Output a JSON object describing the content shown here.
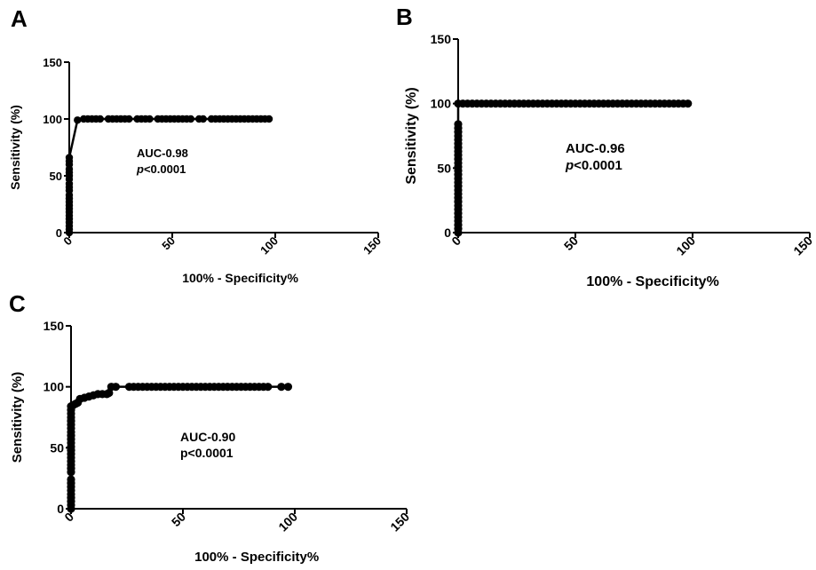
{
  "chart_data": [
    {
      "panel": "A",
      "type": "scatter",
      "xlabel": "100% - Specificity%",
      "ylabel": "Sensitivity (%)",
      "xlim": [
        0,
        150
      ],
      "ylim": [
        0,
        150
      ],
      "xticks": [
        "0",
        "50",
        "100",
        "150"
      ],
      "yticks": [
        "0",
        "50",
        "100",
        "150"
      ],
      "annotation": [
        "AUC-0.98",
        "p<0.0001"
      ],
      "annotation_italic_p": true,
      "x": [
        0,
        0,
        0,
        0,
        0,
        0,
        0,
        0,
        0,
        0,
        0,
        0,
        0,
        0,
        0,
        0,
        0,
        0,
        0,
        0,
        0,
        0,
        4,
        7,
        9,
        11,
        13,
        15,
        19,
        21,
        23,
        25,
        27,
        29,
        33,
        35,
        37,
        39,
        43,
        45,
        47,
        49,
        51,
        53,
        55,
        57,
        59,
        63,
        65,
        69,
        71,
        73,
        75,
        77,
        79,
        81,
        83,
        85,
        87,
        89,
        91,
        93,
        95,
        97
      ],
      "y": [
        0,
        3,
        6,
        9,
        12,
        15,
        18,
        21,
        24,
        27,
        30,
        33,
        37,
        40,
        43,
        47,
        50,
        53,
        56,
        60,
        63,
        66,
        99,
        100,
        100,
        100,
        100,
        100,
        100,
        100,
        100,
        100,
        100,
        100,
        100,
        100,
        100,
        100,
        100,
        100,
        100,
        100,
        100,
        100,
        100,
        100,
        100,
        100,
        100,
        100,
        100,
        100,
        100,
        100,
        100,
        100,
        100,
        100,
        100,
        100,
        100,
        100,
        100,
        100
      ]
    },
    {
      "panel": "B",
      "type": "scatter",
      "xlabel": "100% - Specificity%",
      "ylabel": "Sensitivity (%)",
      "xlim": [
        0,
        150
      ],
      "ylim": [
        0,
        150
      ],
      "xticks": [
        "0",
        "50",
        "100",
        "150"
      ],
      "yticks": [
        "0",
        "50",
        "100",
        "150"
      ],
      "annotation": [
        "AUC-0.96",
        "p<0.0001"
      ],
      "annotation_italic_p": true,
      "x": [
        0,
        0,
        0,
        0,
        0,
        0,
        0,
        0,
        0,
        0,
        0,
        0,
        0,
        0,
        0,
        0,
        0,
        0,
        0,
        0,
        0,
        0,
        0,
        0,
        0,
        0,
        0,
        0,
        0,
        0,
        2,
        4,
        6,
        8,
        10,
        12,
        14,
        16,
        18,
        20,
        22,
        24,
        26,
        28,
        30,
        32,
        34,
        36,
        38,
        40,
        42,
        44,
        46,
        48,
        50,
        52,
        54,
        56,
        58,
        60,
        62,
        64,
        66,
        68,
        70,
        72,
        74,
        76,
        78,
        80,
        82,
        84,
        86,
        88,
        90,
        92,
        94,
        96,
        98
      ],
      "y": [
        0,
        3,
        6,
        9,
        12,
        15,
        18,
        21,
        24,
        27,
        30,
        33,
        36,
        39,
        42,
        45,
        48,
        51,
        54,
        57,
        60,
        63,
        66,
        69,
        72,
        75,
        78,
        81,
        84,
        100,
        100,
        100,
        100,
        100,
        100,
        100,
        100,
        100,
        100,
        100,
        100,
        100,
        100,
        100,
        100,
        100,
        100,
        100,
        100,
        100,
        100,
        100,
        100,
        100,
        100,
        100,
        100,
        100,
        100,
        100,
        100,
        100,
        100,
        100,
        100,
        100,
        100,
        100,
        100,
        100,
        100,
        100,
        100,
        100,
        100,
        100,
        100,
        100,
        100
      ]
    },
    {
      "panel": "C",
      "type": "scatter",
      "xlabel": "100% - Specificity%",
      "ylabel": "Sensitivity (%)",
      "xlim": [
        0,
        150
      ],
      "ylim": [
        0,
        150
      ],
      "xticks": [
        "0",
        "50",
        "100",
        "150"
      ],
      "yticks": [
        "0",
        "50",
        "100",
        "150"
      ],
      "annotation": [
        "AUC-0.90",
        "p<0.0001"
      ],
      "annotation_italic_p": false,
      "x": [
        0,
        0,
        0,
        0,
        0,
        0,
        0,
        0,
        0,
        0,
        0,
        0,
        0,
        0,
        0,
        0,
        0,
        0,
        0,
        0,
        0,
        0,
        0,
        0,
        0,
        0,
        0,
        0,
        1,
        2,
        3,
        4,
        6,
        8,
        10,
        12,
        14,
        16,
        17,
        18,
        20,
        26,
        28,
        30,
        32,
        34,
        36,
        38,
        40,
        42,
        44,
        46,
        48,
        50,
        52,
        54,
        56,
        58,
        60,
        62,
        64,
        66,
        68,
        70,
        72,
        74,
        76,
        78,
        80,
        82,
        84,
        86,
        88,
        94,
        97
      ],
      "y": [
        0,
        3,
        6,
        9,
        12,
        15,
        18,
        21,
        24,
        30,
        33,
        36,
        39,
        42,
        45,
        48,
        51,
        54,
        57,
        60,
        63,
        66,
        69,
        72,
        75,
        78,
        81,
        84,
        85,
        86,
        87,
        90,
        91,
        92,
        93,
        94,
        94,
        94,
        95,
        100,
        100,
        100,
        100,
        100,
        100,
        100,
        100,
        100,
        100,
        100,
        100,
        100,
        100,
        100,
        100,
        100,
        100,
        100,
        100,
        100,
        100,
        100,
        100,
        100,
        100,
        100,
        100,
        100,
        100,
        100,
        100,
        100,
        100,
        100,
        100
      ]
    }
  ]
}
